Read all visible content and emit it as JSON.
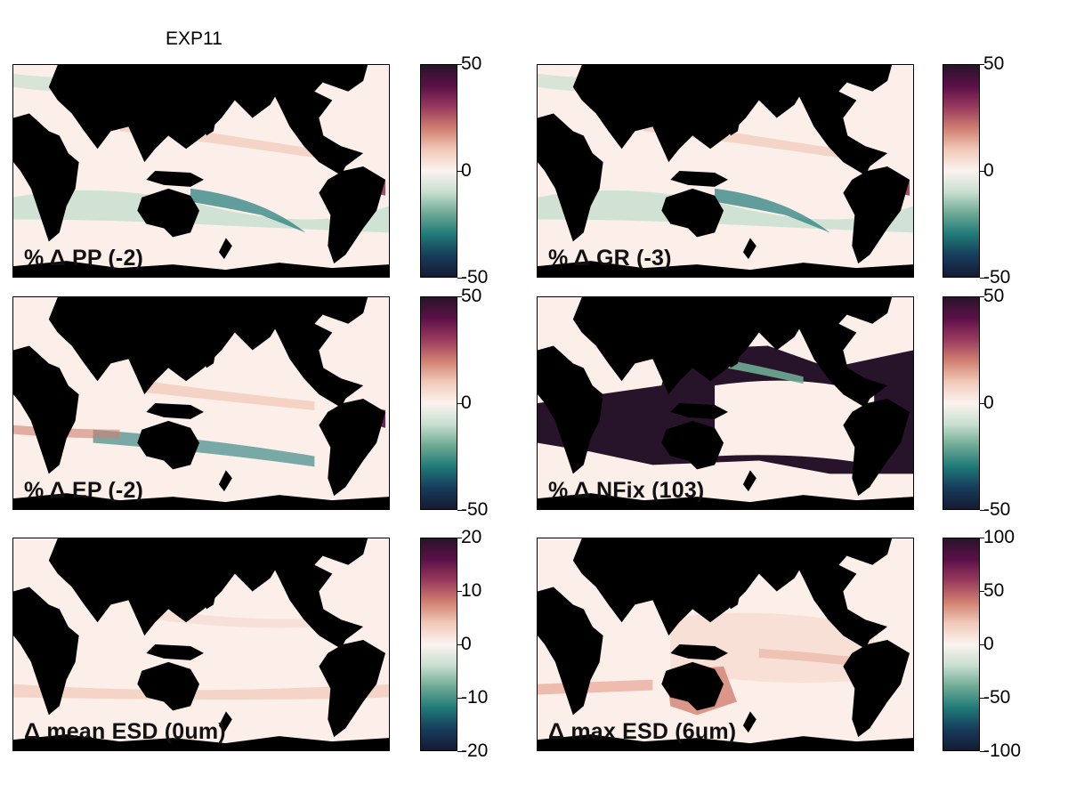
{
  "title": "EXP11",
  "colormap": [
    "#28142a",
    "#5c1048",
    "#9a3a5e",
    "#d08070",
    "#f1c9b8",
    "#fbf3ef",
    "#c8dfcf",
    "#6eaa95",
    "#1f7a78",
    "#163c5c",
    "#151a32"
  ],
  "land_color": "#000000",
  "ocean_base_color": "#fcefea",
  "panels": [
    {
      "label": "% Δ PP (-2)",
      "ticks": [
        "50",
        "0",
        "-50"
      ],
      "pattern": "decline-green"
    },
    {
      "label": "% Δ GR (-3)",
      "ticks": [
        "50",
        "0",
        "-50"
      ],
      "pattern": "decline-green"
    },
    {
      "label": "% Δ EP (-2)",
      "ticks": [
        "50",
        "0",
        "-50"
      ],
      "pattern": "decline-mixed"
    },
    {
      "label": "% Δ NFix (103)",
      "ticks": [
        "50",
        "0",
        "-50"
      ],
      "pattern": "nfix"
    },
    {
      "label": "Δ mean ESD (0um)",
      "ticks": [
        "20",
        "10",
        "0",
        "-10",
        "-20"
      ],
      "pattern": "faint-pink"
    },
    {
      "label": "Δ max ESD (6um)",
      "ticks": [
        "100",
        "50",
        "0",
        "-50",
        "-100"
      ],
      "pattern": "pink-patches"
    }
  ]
}
